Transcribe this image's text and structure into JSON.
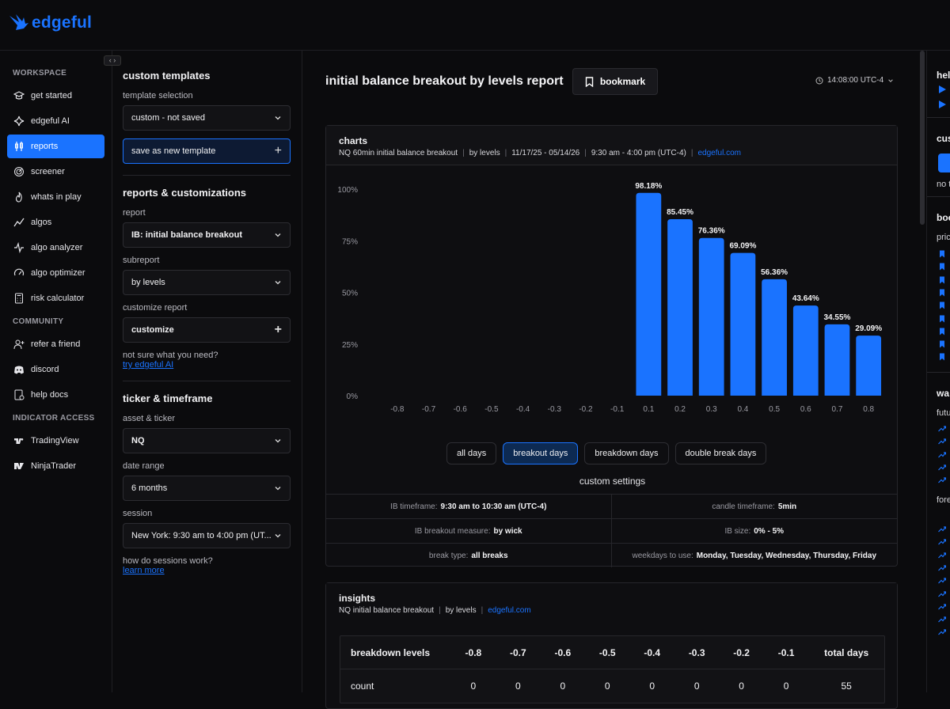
{
  "brand": {
    "name": "edgeful",
    "color": "#1a73ff"
  },
  "nav": {
    "sections": {
      "workspace": "WORKSPACE",
      "community": "COMMUNITY",
      "indicator": "INDICATOR ACCESS"
    },
    "items": [
      {
        "label": "get started",
        "icon": "graduation-cap-icon"
      },
      {
        "label": "edgeful AI",
        "icon": "sparkle-icon"
      },
      {
        "label": "reports",
        "icon": "candlestick-icon",
        "active": true
      },
      {
        "label": "screener",
        "icon": "radar-icon"
      },
      {
        "label": "whats in play",
        "icon": "flame-icon"
      },
      {
        "label": "algos",
        "icon": "trend-line-icon"
      },
      {
        "label": "algo analyzer",
        "icon": "activity-icon"
      },
      {
        "label": "algo optimizer",
        "icon": "gauge-icon"
      },
      {
        "label": "risk calculator",
        "icon": "calculator-icon"
      }
    ],
    "community_items": [
      {
        "label": "refer a friend",
        "icon": "user-plus-icon"
      },
      {
        "label": "discord",
        "icon": "discord-icon"
      },
      {
        "label": "help docs",
        "icon": "help-doc-icon"
      }
    ],
    "indicator_items": [
      {
        "label": "TradingView",
        "icon": "tradingview-icon"
      },
      {
        "label": "NinjaTrader",
        "icon": "ninjatrader-icon"
      }
    ]
  },
  "panel": {
    "custom_templates_title": "custom templates",
    "template_selection_label": "template selection",
    "template_selection_value": "custom - not saved",
    "save_template_label": "save as new template",
    "reports_title": "reports & customizations",
    "report_label": "report",
    "report_value": "IB: initial balance breakout",
    "subreport_label": "subreport",
    "subreport_value": "by levels",
    "customize_report_label": "customize report",
    "customize_value": "customize",
    "not_sure": "not sure what you need?",
    "try_ai": "try edgeful AI",
    "ticker_title": "ticker & timeframe",
    "asset_label": "asset & ticker",
    "asset_value": "NQ",
    "date_range_label": "date range",
    "date_range_value": "6 months",
    "session_label": "session",
    "session_value": "New York: 9:30 am to 4:00 pm (UT...",
    "sessions_q": "how do sessions work?",
    "learn_more": "learn more"
  },
  "header": {
    "title": "initial balance breakout by levels report",
    "bookmark_label": "bookmark",
    "time": "14:08:00 UTC-4"
  },
  "charts_card": {
    "title": "charts",
    "sub": [
      "NQ 60min initial balance breakout",
      "by levels",
      "11/17/25 - 05/14/26",
      "9:30 am - 4:00 pm (UTC-4)"
    ],
    "site": "edgeful.com",
    "toggles": [
      "all days",
      "breakout days",
      "breakdown days",
      "double break days"
    ],
    "active_toggle": 1,
    "custom_settings_title": "custom settings",
    "settings": [
      {
        "k": "IB timeframe:",
        "v": "9:30 am to 10:30 am (UTC-4)"
      },
      {
        "k": "candle timeframe:",
        "v": "5min"
      },
      {
        "k": "IB breakout measure:",
        "v": "by wick"
      },
      {
        "k": "IB size:",
        "v": "0% - 5%"
      },
      {
        "k": "break type:",
        "v": "all breaks"
      },
      {
        "k": "weekdays to use:",
        "v": "Monday, Tuesday, Wednesday, Thursday, Friday"
      }
    ]
  },
  "chart_data": {
    "type": "bar",
    "categories": [
      "-0.8",
      "-0.7",
      "-0.6",
      "-0.5",
      "-0.4",
      "-0.3",
      "-0.2",
      "-0.1",
      "0.1",
      "0.2",
      "0.3",
      "0.4",
      "0.5",
      "0.6",
      "0.7",
      "0.8"
    ],
    "values": [
      0,
      0,
      0,
      0,
      0,
      0,
      0,
      0,
      98.18,
      85.45,
      76.36,
      69.09,
      56.36,
      43.64,
      34.55,
      29.09
    ],
    "data_labels": [
      "",
      "",
      "",
      "",
      "",
      "",
      "",
      "",
      "98.18%",
      "85.45%",
      "76.36%",
      "69.09%",
      "56.36%",
      "43.64%",
      "34.55%",
      "29.09%"
    ],
    "ylim": [
      0,
      100
    ],
    "yticks": [
      "0%",
      "25%",
      "50%",
      "75%",
      "100%"
    ],
    "ytick_values": [
      0,
      25,
      50,
      75,
      100
    ],
    "bar_color": "#1a73ff",
    "grid": false
  },
  "insights_card": {
    "title": "insights",
    "sub": [
      "NQ initial balance breakout",
      "by levels"
    ],
    "site": "edgeful.com",
    "table": {
      "header": [
        "breakdown levels",
        "-0.8",
        "-0.7",
        "-0.6",
        "-0.5",
        "-0.4",
        "-0.3",
        "-0.2",
        "-0.1",
        "total days"
      ],
      "rows": [
        [
          "count",
          "0",
          "0",
          "0",
          "0",
          "0",
          "0",
          "0",
          "0",
          "55"
        ]
      ]
    }
  },
  "right_panel": {
    "help": "hel",
    "custom": "cus",
    "no_t": "no t",
    "book": "boo",
    "pri": "pric",
    "wa": "wa",
    "fut": "futu",
    "for": "fore"
  }
}
